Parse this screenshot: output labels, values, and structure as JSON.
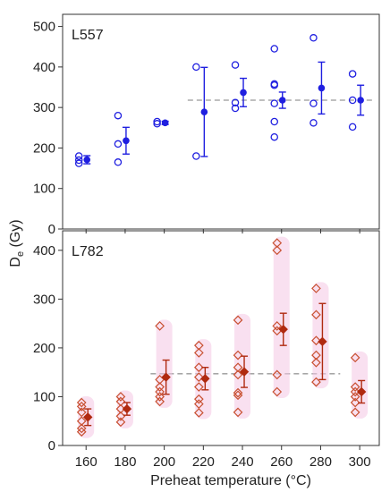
{
  "figure": {
    "xlabel": "Preheat temperature (°C)",
    "ylabel_main": "D",
    "ylabel_sub": "e",
    "ylabel_unit": " (Gy)"
  },
  "colors": {
    "l557": "#1f1fe0",
    "l782_marker": "#c85030",
    "l782_bar": "#b02a10",
    "l782_halo": "#f4c6e4",
    "reference_line": "#999999",
    "axis": "#333333"
  },
  "chart_data": [
    {
      "type": "scatter",
      "title": "L557",
      "x_ticks": [
        160,
        180,
        200,
        220,
        240,
        260,
        280,
        300
      ],
      "xlim": [
        148,
        310
      ],
      "ylim": [
        0,
        530
      ],
      "y_ticks": [
        0,
        100,
        200,
        300,
        400,
        500
      ],
      "marker": "open-circle",
      "aliquots": [
        {
          "x": 160,
          "values": [
            180,
            170,
            162
          ]
        },
        {
          "x": 180,
          "values": [
            280,
            210,
            165
          ]
        },
        {
          "x": 200,
          "values": [
            265,
            260
          ]
        },
        {
          "x": 220,
          "values": [
            400,
            180
          ]
        },
        {
          "x": 240,
          "values": [
            405,
            312,
            298
          ]
        },
        {
          "x": 260,
          "values": [
            445,
            358,
            355,
            310,
            265,
            227
          ]
        },
        {
          "x": 280,
          "values": [
            472,
            310,
            262
          ]
        },
        {
          "x": 300,
          "values": [
            383,
            318,
            252
          ]
        }
      ],
      "means": [
        {
          "x": 160,
          "mean": 171,
          "err": 10
        },
        {
          "x": 180,
          "mean": 218,
          "err": 33
        },
        {
          "x": 200,
          "mean": 262,
          "err": 4
        },
        {
          "x": 220,
          "mean": 289,
          "err": 110
        },
        {
          "x": 240,
          "mean": 337,
          "err": 35
        },
        {
          "x": 260,
          "mean": 318,
          "err": 20
        },
        {
          "x": 280,
          "mean": 348,
          "err": 64
        },
        {
          "x": 300,
          "mean": 318,
          "err": 37
        }
      ],
      "reference_line": {
        "y": 318,
        "x_from": 212,
        "x_to": 307
      }
    },
    {
      "type": "scatter",
      "title": "L782",
      "x_ticks": [
        160,
        180,
        200,
        220,
        240,
        260,
        280,
        300
      ],
      "xlim": [
        148,
        310
      ],
      "ylim": [
        0,
        440
      ],
      "y_ticks": [
        0,
        100,
        200,
        300,
        400
      ],
      "marker": "open-diamond",
      "aliquots": [
        {
          "x": 160,
          "values": [
            88,
            80,
            68,
            50,
            35,
            28
          ]
        },
        {
          "x": 180,
          "values": [
            100,
            90,
            75,
            60,
            48
          ]
        },
        {
          "x": 200,
          "values": [
            245,
            135,
            120,
            110,
            100,
            90
          ]
        },
        {
          "x": 220,
          "values": [
            205,
            190,
            160,
            140,
            120,
            95,
            85,
            67
          ]
        },
        {
          "x": 240,
          "values": [
            257,
            185,
            160,
            145,
            108,
            103,
            68
          ]
        },
        {
          "x": 260,
          "values": [
            415,
            400,
            245,
            235,
            145,
            110
          ]
        },
        {
          "x": 280,
          "values": [
            322,
            268,
            215,
            185,
            170,
            130
          ]
        },
        {
          "x": 300,
          "values": [
            180,
            120,
            110,
            100,
            88,
            68
          ]
        }
      ],
      "means": [
        {
          "x": 160,
          "mean": 58,
          "err": 17
        },
        {
          "x": 180,
          "mean": 75,
          "err": 13
        },
        {
          "x": 200,
          "mean": 140,
          "err": 35
        },
        {
          "x": 220,
          "mean": 137,
          "err": 23
        },
        {
          "x": 240,
          "mean": 151,
          "err": 32
        },
        {
          "x": 260,
          "mean": 238,
          "err": 33
        },
        {
          "x": 280,
          "mean": 213,
          "err": 78
        },
        {
          "x": 300,
          "mean": 110,
          "err": 23
        }
      ],
      "reference_line": {
        "y": 147,
        "x_from": 193,
        "x_to": 290
      }
    }
  ]
}
